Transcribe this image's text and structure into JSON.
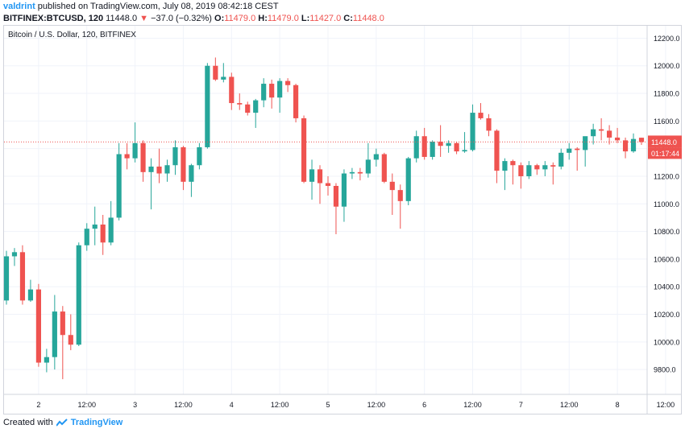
{
  "header": {
    "user": "valdrint",
    "publish_text": "published on TradingView.com, July 08, 2019 08:42:18 CEST",
    "symbol": "BITFINEX:BTCUSD, 120",
    "last": "11448.0",
    "change": "−37.0 (−0.32%)",
    "o_label": "O:",
    "o_value": "11479.0",
    "h_label": "H:",
    "h_value": "11479.0",
    "l_label": "L:",
    "l_value": "11427.0",
    "c_label": "C:",
    "c_value": "11448.0",
    "down_color": "#ef5350"
  },
  "chart_data": {
    "type": "candlestick",
    "title": "Bitcoin / U.S. Dollar, 120, BITFINEX",
    "x_tick_labels": [
      "2",
      "12:00",
      "3",
      "12:00",
      "4",
      "12:00",
      "5",
      "12:00",
      "6",
      "12:00",
      "7",
      "12:00",
      "8",
      "12:00"
    ],
    "y_ticks": [
      9800,
      10000,
      10200,
      10400,
      10600,
      10800,
      11000,
      11200,
      11400,
      11600,
      11800,
      12000,
      12200
    ],
    "y_tick_labels": [
      "9800.0",
      "10000.0",
      "10200.0",
      "10400.0",
      "10600.0",
      "10800.0",
      "11000.0",
      "11200.0",
      "11400.0",
      "11600.0",
      "11800.0",
      "12000.0",
      "12200.0"
    ],
    "ylim": [
      9620,
      12290
    ],
    "last_price": 11448.0,
    "last_price_label": "11448.0",
    "countdown_label": "01:17:44",
    "up_color": "#26a69a",
    "down_color": "#ef5350",
    "grid": true,
    "candles": [
      {
        "o": 10300,
        "h": 10660,
        "l": 10270,
        "c": 10620
      },
      {
        "o": 10620,
        "h": 10680,
        "l": 10550,
        "c": 10650
      },
      {
        "o": 10650,
        "h": 10700,
        "l": 10270,
        "c": 10300
      },
      {
        "o": 10300,
        "h": 10450,
        "l": 10290,
        "c": 10380
      },
      {
        "o": 10380,
        "h": 10420,
        "l": 9820,
        "c": 9850
      },
      {
        "o": 9850,
        "h": 9950,
        "l": 9780,
        "c": 9890
      },
      {
        "o": 9890,
        "h": 10340,
        "l": 9800,
        "c": 10220
      },
      {
        "o": 10220,
        "h": 10260,
        "l": 9730,
        "c": 10050
      },
      {
        "o": 10050,
        "h": 10200,
        "l": 9940,
        "c": 9980
      },
      {
        "o": 9980,
        "h": 10720,
        "l": 9970,
        "c": 10700
      },
      {
        "o": 10700,
        "h": 10860,
        "l": 10660,
        "c": 10820
      },
      {
        "o": 10820,
        "h": 10980,
        "l": 10700,
        "c": 10850
      },
      {
        "o": 10850,
        "h": 10920,
        "l": 10630,
        "c": 10720
      },
      {
        "o": 10720,
        "h": 11020,
        "l": 10700,
        "c": 10900
      },
      {
        "o": 10900,
        "h": 11440,
        "l": 10880,
        "c": 11360
      },
      {
        "o": 11360,
        "h": 11440,
        "l": 11250,
        "c": 11330
      },
      {
        "o": 11330,
        "h": 11590,
        "l": 11300,
        "c": 11440
      },
      {
        "o": 11440,
        "h": 11460,
        "l": 11160,
        "c": 11230
      },
      {
        "o": 11230,
        "h": 11330,
        "l": 10960,
        "c": 11270
      },
      {
        "o": 11270,
        "h": 11400,
        "l": 11150,
        "c": 11220
      },
      {
        "o": 11220,
        "h": 11320,
        "l": 11160,
        "c": 11280
      },
      {
        "o": 11280,
        "h": 11460,
        "l": 11210,
        "c": 11410
      },
      {
        "o": 11410,
        "h": 11420,
        "l": 11100,
        "c": 11160
      },
      {
        "o": 11160,
        "h": 11290,
        "l": 11050,
        "c": 11280
      },
      {
        "o": 11280,
        "h": 11440,
        "l": 11250,
        "c": 11410
      },
      {
        "o": 11410,
        "h": 12020,
        "l": 11400,
        "c": 12000
      },
      {
        "o": 12000,
        "h": 12060,
        "l": 11890,
        "c": 11900
      },
      {
        "o": 11900,
        "h": 12020,
        "l": 11880,
        "c": 11920
      },
      {
        "o": 11920,
        "h": 11950,
        "l": 11680,
        "c": 11730
      },
      {
        "o": 11730,
        "h": 11800,
        "l": 11680,
        "c": 11720
      },
      {
        "o": 11720,
        "h": 11740,
        "l": 11640,
        "c": 11660
      },
      {
        "o": 11660,
        "h": 11760,
        "l": 11550,
        "c": 11750
      },
      {
        "o": 11750,
        "h": 11910,
        "l": 11700,
        "c": 11870
      },
      {
        "o": 11870,
        "h": 11900,
        "l": 11690,
        "c": 11770
      },
      {
        "o": 11770,
        "h": 11910,
        "l": 11660,
        "c": 11890
      },
      {
        "o": 11890,
        "h": 11910,
        "l": 11810,
        "c": 11860
      },
      {
        "o": 11860,
        "h": 11870,
        "l": 11590,
        "c": 11620
      },
      {
        "o": 11620,
        "h": 11640,
        "l": 11150,
        "c": 11160
      },
      {
        "o": 11160,
        "h": 11320,
        "l": 11030,
        "c": 11250
      },
      {
        "o": 11250,
        "h": 11280,
        "l": 11000,
        "c": 11150
      },
      {
        "o": 11150,
        "h": 11200,
        "l": 11060,
        "c": 11130
      },
      {
        "o": 11130,
        "h": 11150,
        "l": 10780,
        "c": 10980
      },
      {
        "o": 10980,
        "h": 11250,
        "l": 10870,
        "c": 11220
      },
      {
        "o": 11220,
        "h": 11260,
        "l": 11180,
        "c": 11230
      },
      {
        "o": 11230,
        "h": 11260,
        "l": 11170,
        "c": 11220
      },
      {
        "o": 11220,
        "h": 11440,
        "l": 11190,
        "c": 11320
      },
      {
        "o": 11320,
        "h": 11400,
        "l": 11270,
        "c": 11360
      },
      {
        "o": 11360,
        "h": 11370,
        "l": 11150,
        "c": 11160
      },
      {
        "o": 11160,
        "h": 11220,
        "l": 10920,
        "c": 11100
      },
      {
        "o": 11100,
        "h": 11140,
        "l": 10820,
        "c": 11020
      },
      {
        "o": 11020,
        "h": 11340,
        "l": 10990,
        "c": 11330
      },
      {
        "o": 11330,
        "h": 11530,
        "l": 11300,
        "c": 11490
      },
      {
        "o": 11490,
        "h": 11550,
        "l": 11320,
        "c": 11340
      },
      {
        "o": 11340,
        "h": 11460,
        "l": 11320,
        "c": 11450
      },
      {
        "o": 11450,
        "h": 11570,
        "l": 11340,
        "c": 11420
      },
      {
        "o": 11420,
        "h": 11460,
        "l": 11370,
        "c": 11440
      },
      {
        "o": 11440,
        "h": 11450,
        "l": 11360,
        "c": 11380
      },
      {
        "o": 11380,
        "h": 11520,
        "l": 11370,
        "c": 11390
      },
      {
        "o": 11390,
        "h": 11720,
        "l": 11380,
        "c": 11660
      },
      {
        "o": 11660,
        "h": 11730,
        "l": 11610,
        "c": 11620
      },
      {
        "o": 11620,
        "h": 11650,
        "l": 11490,
        "c": 11530
      },
      {
        "o": 11530,
        "h": 11540,
        "l": 11150,
        "c": 11240
      },
      {
        "o": 11240,
        "h": 11330,
        "l": 11100,
        "c": 11310
      },
      {
        "o": 11310,
        "h": 11320,
        "l": 11140,
        "c": 11280
      },
      {
        "o": 11280,
        "h": 11300,
        "l": 11110,
        "c": 11200
      },
      {
        "o": 11200,
        "h": 11310,
        "l": 11180,
        "c": 11280
      },
      {
        "o": 11280,
        "h": 11290,
        "l": 11210,
        "c": 11250
      },
      {
        "o": 11250,
        "h": 11310,
        "l": 11200,
        "c": 11280
      },
      {
        "o": 11280,
        "h": 11300,
        "l": 11140,
        "c": 11270
      },
      {
        "o": 11270,
        "h": 11400,
        "l": 11250,
        "c": 11370
      },
      {
        "o": 11370,
        "h": 11440,
        "l": 11320,
        "c": 11400
      },
      {
        "o": 11400,
        "h": 11410,
        "l": 11240,
        "c": 11390
      },
      {
        "o": 11390,
        "h": 11480,
        "l": 11270,
        "c": 11490
      },
      {
        "o": 11490,
        "h": 11580,
        "l": 11430,
        "c": 11540
      },
      {
        "o": 11540,
        "h": 11620,
        "l": 11460,
        "c": 11530
      },
      {
        "o": 11530,
        "h": 11570,
        "l": 11430,
        "c": 11480
      },
      {
        "o": 11480,
        "h": 11550,
        "l": 11440,
        "c": 11460
      },
      {
        "o": 11460,
        "h": 11480,
        "l": 11330,
        "c": 11380
      },
      {
        "o": 11380,
        "h": 11510,
        "l": 11370,
        "c": 11470
      },
      {
        "o": 11479,
        "h": 11479,
        "l": 11427,
        "c": 11448
      }
    ]
  },
  "footer": {
    "created_with": "Created with",
    "brand": "TradingView"
  }
}
